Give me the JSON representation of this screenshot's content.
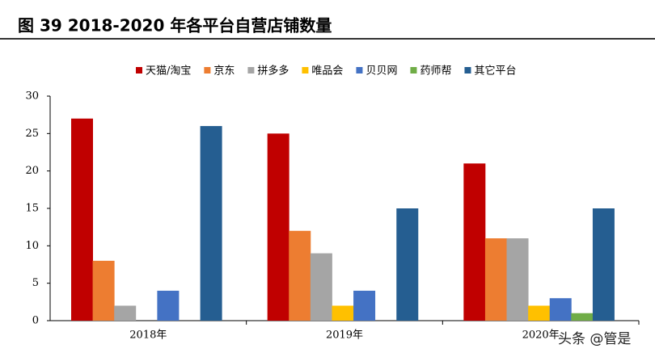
{
  "chart_data": {
    "type": "bar",
    "title": "图 39 2018-2020 年各平台自营店铺数量",
    "categories": [
      "2018年",
      "2019年",
      "2020年"
    ],
    "series": [
      {
        "name": "天猫/淘宝",
        "color": "#c00000",
        "values": [
          27,
          25,
          21
        ]
      },
      {
        "name": "京东",
        "color": "#ed7d31",
        "values": [
          8,
          12,
          11
        ]
      },
      {
        "name": "拼多多",
        "color": "#a5a5a5",
        "values": [
          2,
          9,
          11
        ]
      },
      {
        "name": "唯品会",
        "color": "#ffc000",
        "values": [
          0,
          2,
          2
        ]
      },
      {
        "name": "贝贝网",
        "color": "#4472c4",
        "values": [
          4,
          4,
          3
        ]
      },
      {
        "name": "药师帮",
        "color": "#70ad47",
        "values": [
          0,
          0,
          1
        ]
      },
      {
        "name": "其它平台",
        "color": "#255e91",
        "values": [
          26,
          15,
          15
        ]
      }
    ],
    "ylim": [
      0,
      30
    ],
    "yticks": [
      0,
      5,
      10,
      15,
      20,
      25,
      30
    ],
    "legend": "top",
    "watermark": "头条 @管是"
  }
}
